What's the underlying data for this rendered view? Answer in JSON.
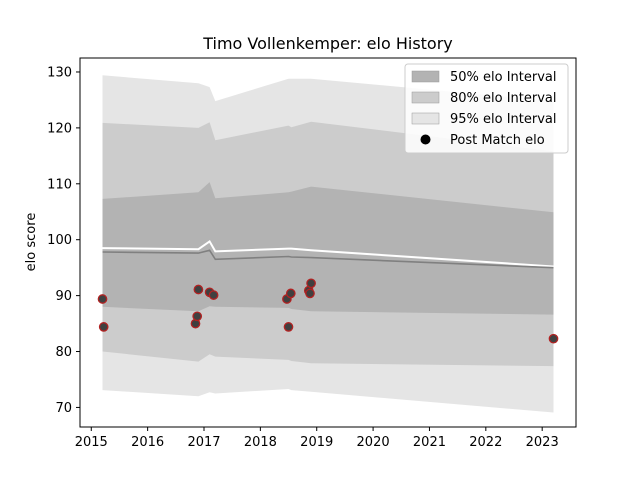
{
  "chart_data": {
    "type": "line",
    "title": "Timo Vollenkemper: elo History",
    "xlabel": "",
    "ylabel": "elo score",
    "xlim": [
      2014.8,
      2023.6
    ],
    "ylim": [
      66.5,
      132.5
    ],
    "x_ticks": [
      2015,
      2016,
      2017,
      2018,
      2019,
      2020,
      2021,
      2022,
      2023
    ],
    "y_ticks": [
      70,
      80,
      90,
      100,
      110,
      120,
      130
    ],
    "grid": false,
    "legend_position": "top-right",
    "colors": {
      "band_50": "#b3b3b3",
      "band_80": "#cccccc",
      "band_95": "#e5e5e5",
      "mean_line": "#808080",
      "upper_line": "#ffffff",
      "point_fill": "#404040",
      "point_edge": "#b22222"
    },
    "legend": [
      {
        "label": "50% elo Interval",
        "kind": "band",
        "color": "#b3b3b3"
      },
      {
        "label": "80% elo Interval",
        "kind": "band",
        "color": "#cccccc"
      },
      {
        "label": "95% elo Interval",
        "kind": "band",
        "color": "#e5e5e5"
      },
      {
        "label": "Post Match elo",
        "kind": "marker",
        "color": "#000000"
      }
    ],
    "x": [
      2015.2,
      2016.9,
      2017.1,
      2017.2,
      2018.5,
      2018.55,
      2018.9,
      2023.2
    ],
    "series": [
      {
        "name": "95% elo Interval upper",
        "values": [
          129.4,
          128.0,
          127.3,
          124.8,
          128.8,
          128.8,
          128.8,
          124.8
        ]
      },
      {
        "name": "95% elo Interval lower",
        "values": [
          73.1,
          72.0,
          72.7,
          72.5,
          73.3,
          73.1,
          72.8,
          69.1
        ]
      },
      {
        "name": "80% elo Interval upper",
        "values": [
          120.9,
          120.0,
          121.0,
          117.8,
          120.4,
          120.1,
          121.1,
          115.8
        ]
      },
      {
        "name": "80% elo Interval lower",
        "values": [
          80.0,
          78.2,
          79.5,
          79.1,
          78.5,
          78.3,
          77.9,
          77.4
        ]
      },
      {
        "name": "50% elo Interval upper",
        "values": [
          107.3,
          108.5,
          110.3,
          107.4,
          108.5,
          108.6,
          109.5,
          104.9
        ]
      },
      {
        "name": "50% elo Interval lower",
        "values": [
          88.0,
          87.2,
          88.1,
          88.0,
          87.8,
          87.6,
          87.2,
          86.6
        ]
      },
      {
        "name": "mean",
        "values": [
          97.8,
          97.6,
          98.1,
          96.5,
          97.0,
          96.9,
          96.8,
          95.0
        ]
      },
      {
        "name": "upper",
        "values": [
          98.5,
          98.3,
          99.7,
          97.9,
          98.4,
          98.4,
          98.1,
          95.2
        ]
      }
    ],
    "points": [
      {
        "x": 2015.2,
        "y": 89.4
      },
      {
        "x": 2015.22,
        "y": 84.4
      },
      {
        "x": 2016.85,
        "y": 85.0
      },
      {
        "x": 2016.88,
        "y": 86.3
      },
      {
        "x": 2016.9,
        "y": 91.1
      },
      {
        "x": 2017.1,
        "y": 90.6
      },
      {
        "x": 2017.17,
        "y": 90.1
      },
      {
        "x": 2018.47,
        "y": 89.4
      },
      {
        "x": 2018.5,
        "y": 84.4
      },
      {
        "x": 2018.54,
        "y": 90.4
      },
      {
        "x": 2018.86,
        "y": 90.9
      },
      {
        "x": 2018.88,
        "y": 90.4
      },
      {
        "x": 2018.9,
        "y": 92.2
      },
      {
        "x": 2023.2,
        "y": 82.3
      }
    ]
  }
}
